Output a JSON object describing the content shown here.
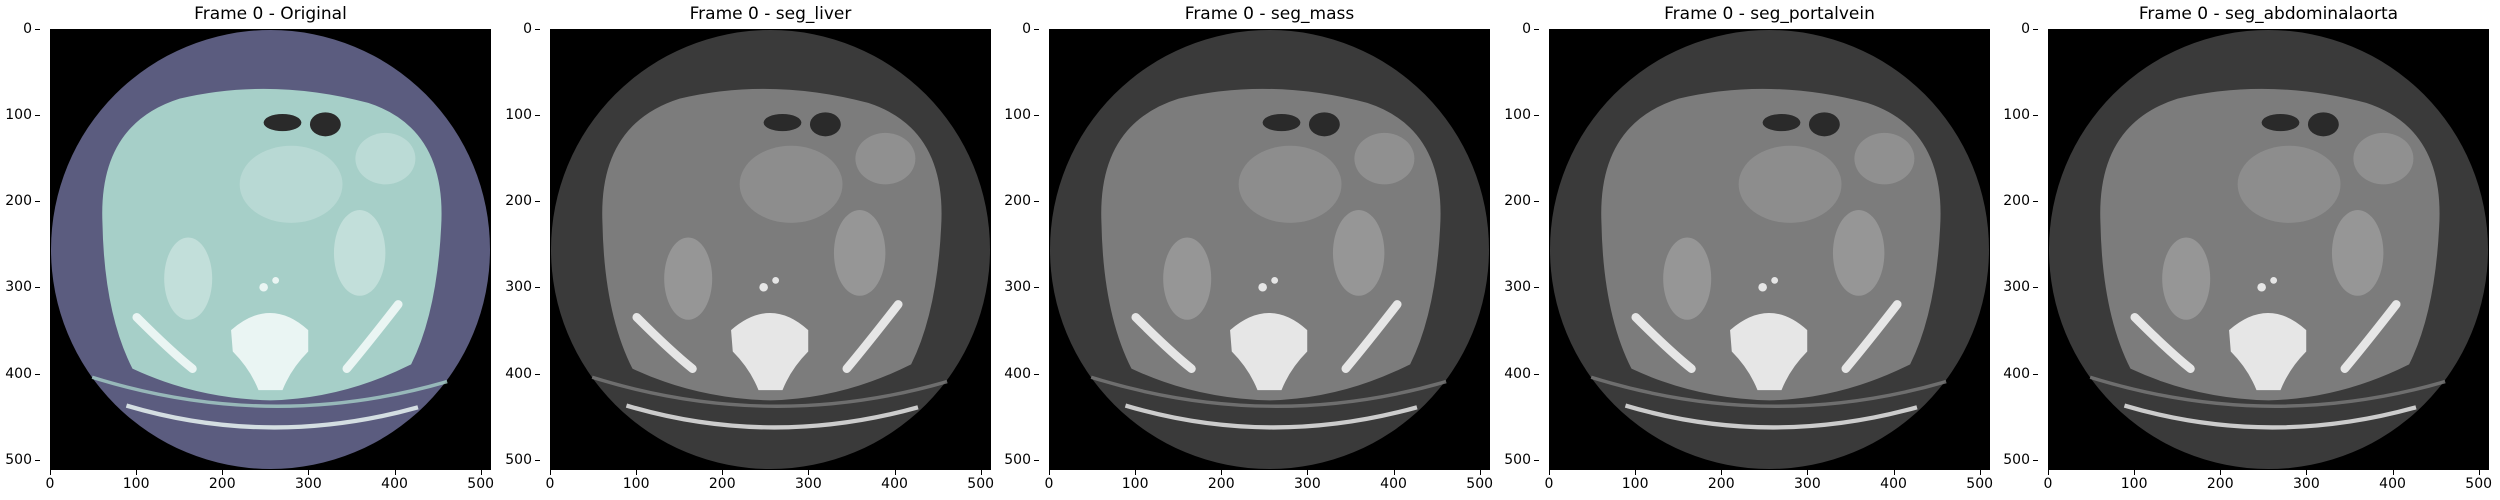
{
  "figure": {
    "ytick_labels": [
      "0",
      "100",
      "200",
      "300",
      "400",
      "500"
    ],
    "xtick_labels": [
      "0",
      "100",
      "200",
      "300",
      "400",
      "500"
    ],
    "panels": [
      {
        "title": "Frame 0 - Original",
        "colormap": "bone",
        "circle_color": "#5b5c7f",
        "body_color": "#a6cfc8",
        "organ_color": "#c5e0dc",
        "bone_color": "#eaf5f3"
      },
      {
        "title": "Frame 0 - seg_liver",
        "colormap": "gray",
        "circle_color": "#3a3a3a",
        "body_color": "#7c7c7c",
        "organ_color": "#999999",
        "bone_color": "#e6e6e6"
      },
      {
        "title": "Frame 0 - seg_mass",
        "colormap": "gray",
        "circle_color": "#3a3a3a",
        "body_color": "#7c7c7c",
        "organ_color": "#999999",
        "bone_color": "#e6e6e6"
      },
      {
        "title": "Frame 0 - seg_portalvein",
        "colormap": "gray",
        "circle_color": "#3a3a3a",
        "body_color": "#7c7c7c",
        "organ_color": "#999999",
        "bone_color": "#e6e6e6"
      },
      {
        "title": "Frame 0 - seg_abdominalaorta",
        "colormap": "gray",
        "circle_color": "#3a3a3a",
        "body_color": "#7c7c7c",
        "organ_color": "#999999",
        "bone_color": "#e6e6e6"
      }
    ]
  }
}
